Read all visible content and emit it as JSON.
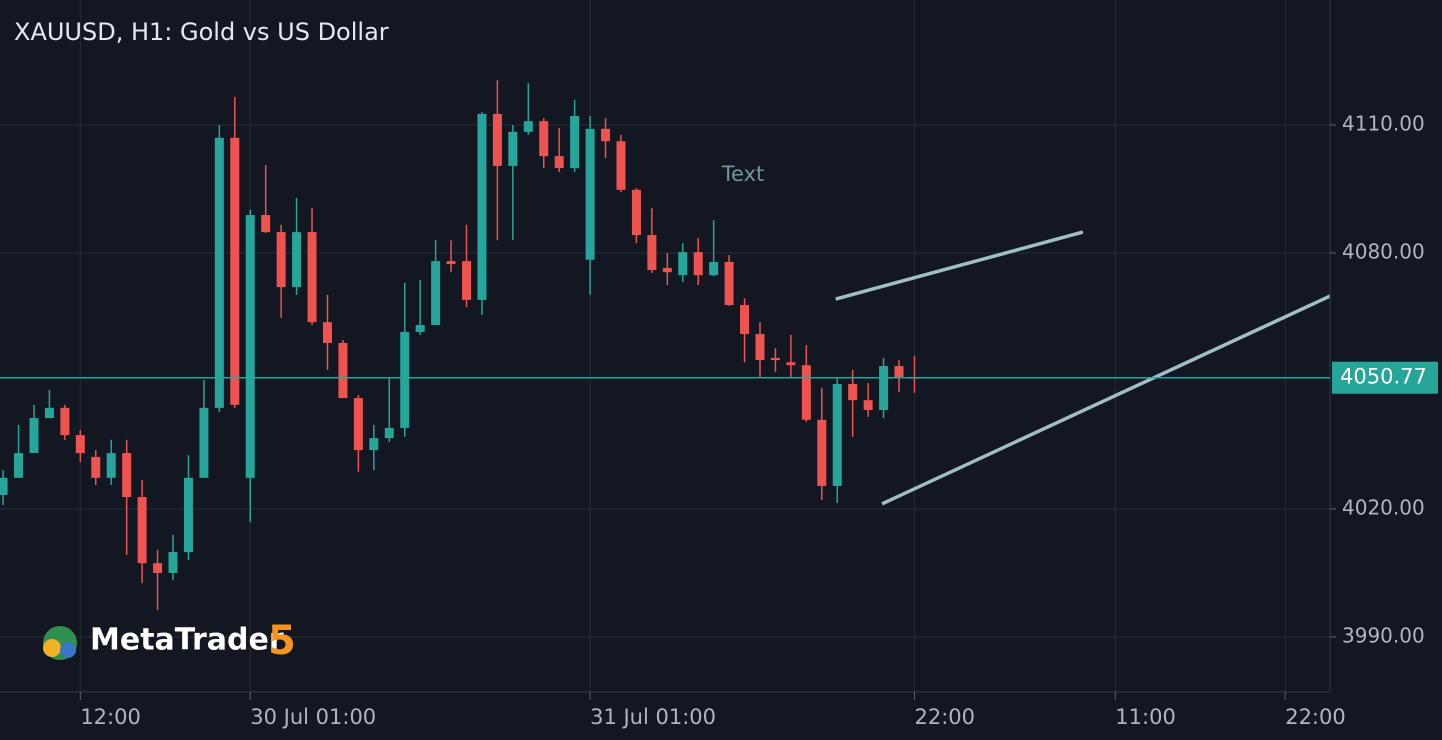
{
  "chart_data": {
    "type": "candlestick",
    "title": "XAUUSD, H1: Gold vs US Dollar",
    "up_color": "#26a69a",
    "down_color": "#ef5350",
    "candles": {
      "open": [
        4023.3,
        4027.3,
        4033.1,
        4041.3,
        4043.7,
        4037.3,
        4032.2,
        4027.3,
        4033.1,
        4022.8,
        4007.3,
        4005.0,
        4009.9,
        4027.3,
        4043.7,
        4107.0,
        4027.3,
        4088.9,
        4084.9,
        4072.0,
        4084.9,
        4063.8,
        4058.9,
        4046.0,
        4033.8,
        4036.6,
        4039.0,
        4061.5,
        4063.1,
        4078.1,
        4078.1,
        4069.0,
        4112.6,
        4100.4,
        4108.4,
        4110.9,
        4102.7,
        4099.9,
        4078.4,
        4109.1,
        4106.2,
        4094.8,
        4084.2,
        4076.5,
        4074.8,
        4080.2,
        4074.8,
        4077.9,
        4067.8,
        4061.0,
        4055.4,
        4054.4,
        4053.7,
        4040.9,
        4025.4,
        4049.3,
        4045.5,
        4043.2,
        4053.5,
        4050.9
      ],
      "high": [
        4029.1,
        4039.7,
        4044.4,
        4047.9,
        4044.4,
        4038.5,
        4033.8,
        4036.2,
        4036.2,
        4026.8,
        4010.4,
        4013.9,
        4032.6,
        4050.2,
        4110.0,
        4116.6,
        4090.1,
        4100.6,
        4086.6,
        4092.9,
        4090.5,
        4070.2,
        4059.6,
        4046.7,
        4039.7,
        4050.7,
        4073.0,
        4073.7,
        4083.0,
        4083.0,
        4086.6,
        4113.0,
        4120.5,
        4110.0,
        4119.8,
        4111.6,
        4109.3,
        4115.9,
        4112.1,
        4111.6,
        4107.7,
        4095.2,
        4090.5,
        4080.0,
        4082.3,
        4083.5,
        4087.7,
        4079.5,
        4069.4,
        4063.8,
        4057.7,
        4060.8,
        4058.4,
        4048.4,
        4050.7,
        4052.6,
        4049.5,
        4055.4,
        4054.9,
        4055.9
      ],
      "low": [
        4020.9,
        4027.3,
        4033.1,
        4041.3,
        4036.2,
        4031.0,
        4025.6,
        4025.6,
        4009.2,
        4002.6,
        3996.3,
        4003.3,
        4008.0,
        4027.3,
        4042.7,
        4043.7,
        4016.9,
        4084.7,
        4064.8,
        4070.2,
        4063.1,
        4052.6,
        4046.0,
        4028.7,
        4029.1,
        4035.7,
        4036.9,
        4060.8,
        4063.1,
        4075.5,
        4067.3,
        4065.5,
        4083.0,
        4083.0,
        4107.7,
        4099.9,
        4099.0,
        4099.0,
        4070.2,
        4102.3,
        4094.3,
        4082.3,
        4075.3,
        4072.5,
        4073.2,
        4072.5,
        4074.6,
        4067.6,
        4054.4,
        4050.7,
        4052.1,
        4050.7,
        4040.4,
        4022.1,
        4021.4,
        4036.9,
        4041.6,
        4041.3,
        4047.4,
        4047.2
      ],
      "close": [
        4027.3,
        4033.1,
        4041.3,
        4043.7,
        4037.3,
        4033.1,
        4027.3,
        4033.1,
        4022.8,
        4007.3,
        4005.0,
        4009.9,
        4027.3,
        4043.7,
        4107.0,
        4044.4,
        4088.9,
        4084.9,
        4072.0,
        4084.9,
        4063.8,
        4058.9,
        4046.0,
        4033.8,
        4036.6,
        4039.0,
        4061.5,
        4063.1,
        4078.1,
        4077.4,
        4069.0,
        4112.6,
        4100.4,
        4108.4,
        4110.9,
        4102.7,
        4099.9,
        4112.1,
        4109.1,
        4106.2,
        4094.8,
        4084.2,
        4076.0,
        4075.5,
        4080.2,
        4074.8,
        4077.9,
        4067.8,
        4061.0,
        4054.9,
        4054.9,
        4053.7,
        4040.9,
        4025.4,
        4049.3,
        4045.5,
        4043.2,
        4053.5,
        4050.9,
        4050.77
      ]
    },
    "last_price": 4050.77,
    "last_price_color": "#26a69a",
    "xlim": [
      -0.2,
      85.9
    ],
    "ylim": [
      3977.1,
      4139.3
    ],
    "xticks": [
      {
        "value": 5,
        "label": "12:00"
      },
      {
        "value": 16,
        "label": "30 Jul 01:00"
      },
      {
        "value": 38,
        "label": "31 Jul 01:00"
      },
      {
        "value": 59,
        "label": "22:00"
      },
      {
        "value": 72,
        "label": "11:00"
      },
      {
        "value": 83,
        "label": "22:00"
      }
    ],
    "yticks": [
      {
        "value": 3990,
        "label": "3990.00"
      },
      {
        "value": 4020,
        "label": "4020.00"
      },
      {
        "value": 4080,
        "label": "4080.00"
      },
      {
        "value": 4110,
        "label": "4110.00"
      }
    ],
    "grid": true,
    "trendlines": [
      {
        "x": [
          53.9,
          69.9
        ],
        "y": [
          4069.2,
          4084.9
        ],
        "color": "#9fbfc4"
      },
      {
        "x": [
          56.9,
          85.9
        ],
        "y": [
          4021.2,
          4069.9
        ],
        "color": "#9fbfc4"
      }
    ],
    "annotations": [
      {
        "text": "Text",
        "x": 47.9,
        "y": 4098.3
      }
    ],
    "logo": {
      "name": "MetaTrader",
      "version": "5"
    }
  }
}
